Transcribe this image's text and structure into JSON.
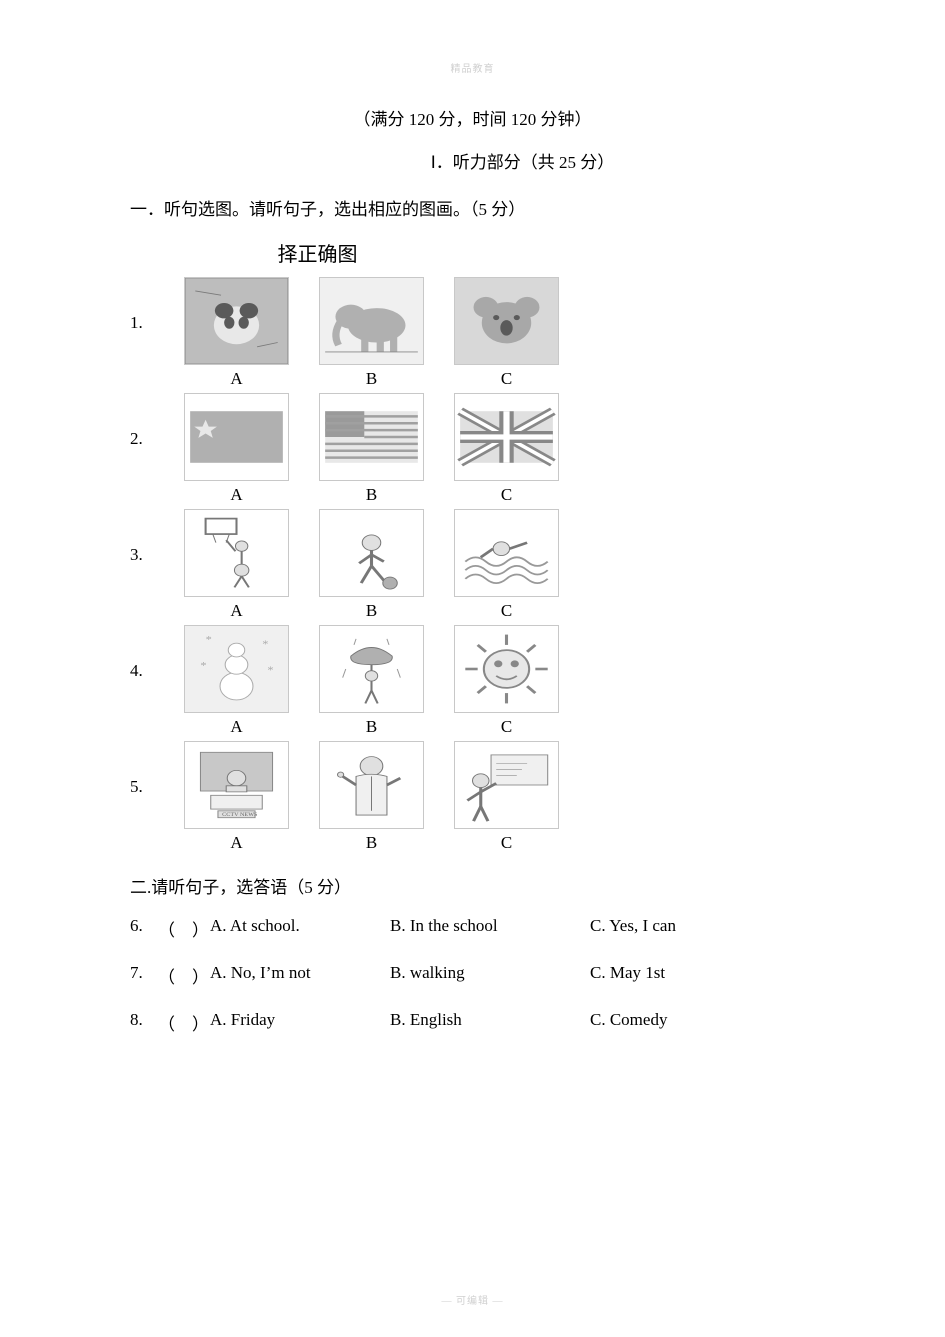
{
  "header_watermark": "精品教育",
  "info_line": "（满分 120 分，时间 120 分钟）",
  "section1_title": "Ⅰ．听力部分（共 25 分）",
  "instruction1": "一．听句选图。请听句子，选出相应的图画。（5 分）",
  "sub_title": "择正确图",
  "rows": [
    {
      "num": "1.",
      "a": "A",
      "b": "B",
      "c": "C",
      "imgs": [
        "panda",
        "elephant",
        "koala"
      ]
    },
    {
      "num": "2.",
      "a": "A",
      "b": "B",
      "c": "C",
      "imgs": [
        "china-flag",
        "usa-flag",
        "uk-flag"
      ]
    },
    {
      "num": "3.",
      "a": "A",
      "b": "B",
      "c": "C",
      "imgs": [
        "basketball",
        "soccer",
        "swim"
      ]
    },
    {
      "num": "4.",
      "a": "A",
      "b": "B",
      "c": "C",
      "imgs": [
        "snow",
        "rain",
        "sun"
      ]
    },
    {
      "num": "5.",
      "a": "A",
      "b": "B",
      "c": "C",
      "imgs": [
        "news-anchor",
        "doctor",
        "teacher"
      ]
    }
  ],
  "instruction2": "二.请听句子，选答语（5 分）",
  "text_questions": [
    {
      "num": "6.",
      "paren": "（　）",
      "a": "A. At school.",
      "b": "B. In the school",
      "c": "C. Yes, I can"
    },
    {
      "num": "7.",
      "paren": "（　）",
      "a": "A. No, I’m not",
      "b": "B. walking",
      "c": "C. May 1st"
    },
    {
      "num": "8.",
      "paren": "（　）",
      "a": "A. Friday",
      "b": "B. English",
      "c": "C. Comedy"
    }
  ],
  "footer_watermark": "— 可编辑 —",
  "svg_defs": {
    "panda": "<rect width='100' height='100' fill='#bdbdbd'/><circle cx='50' cy='55' r='22' fill='#e8e8e8'/><circle cx='38' cy='38' r='9' fill='#5a5a5a'/><circle cx='62' cy='38' r='9' fill='#5a5a5a'/><ellipse cx='43' cy='52' rx='5' ry='7' fill='#5a5a5a'/><ellipse cx='57' cy='52' rx='5' ry='7' fill='#5a5a5a'/><rect x='0' y='0' width='100' height='100' fill='none' stroke='#8a8a8a' stroke-width='1'/><line x1='10' y1='15' x2='35' y2='20' stroke='#7a7a7a'/><line x1='70' y1='80' x2='90' y2='75' stroke='#7a7a7a'/>",
    "elephant": "<rect width='100' height='100' fill='#f0f0f0'/><ellipse cx='55' cy='55' rx='28' ry='20' fill='#b0b0b0'/><ellipse cx='30' cy='45' rx='15' ry='14' fill='#b0b0b0'/><path d='M20 50 Q12 65 18 78' stroke='#b0b0b0' stroke-width='7' fill='none'/><rect x='40' y='68' width='7' height='18' fill='#b0b0b0'/><rect x='55' y='68' width='7' height='18' fill='#b0b0b0'/><rect x='68' y='68' width='7' height='18' fill='#b0b0b0'/><line x1='5' y1='86' x2='95' y2='86' stroke='#888'/>",
    "koala": "<rect width='100' height='100' fill='#d8d8d8'/><circle cx='50' cy='52' r='24' fill='#a8a8a8'/><circle cx='30' cy='34' r='12' fill='#a8a8a8'/><circle cx='70' cy='34' r='12' fill='#a8a8a8'/><ellipse cx='50' cy='58' rx='6' ry='9' fill='#5a5a5a'/><circle cx='40' cy='46' r='3' fill='#5a5a5a'/><circle cx='60' cy='46' r='3' fill='#5a5a5a'/>",
    "china-flag": "<rect width='100' height='100' fill='#fff'/><rect x='5' y='20' width='90' height='60' fill='#b0b0b0'/><polygon points='20,30 23,38 31,38 25,43 27,51 20,46 13,51 15,43 9,38 17,38' fill='#e8e8e8'/>",
    "usa-flag": "<rect width='100' height='100' fill='#fff'/><rect x='5' y='20' width='90' height='60' fill='#e8e8e8'/><rect x='5' y='20' width='38' height='30' fill='#9a9a9a'/><line x1='5' y1='26' x2='95' y2='26' stroke='#a0a0a0' stroke-width='3'/><line x1='5' y1='34' x2='95' y2='34' stroke='#a0a0a0' stroke-width='3'/><line x1='5' y1='42' x2='95' y2='42' stroke='#a0a0a0' stroke-width='3'/><line x1='43' y1='50' x2='95' y2='50' stroke='#a0a0a0' stroke-width='3'/><line x1='5' y1='58' x2='95' y2='58' stroke='#a0a0a0' stroke-width='3'/><line x1='5' y1='66' x2='95' y2='66' stroke='#a0a0a0' stroke-width='3'/><line x1='5' y1='74' x2='95' y2='74' stroke='#a0a0a0' stroke-width='3'/>",
    "uk-flag": "<rect width='100' height='100' fill='#fff'/><rect x='5' y='20' width='90' height='60' fill='#e0e0e0'/><line x1='5' y1='20' x2='95' y2='80' stroke='#888' stroke-width='10'/><line x1='95' y1='20' x2='5' y2='80' stroke='#888' stroke-width='10'/><line x1='5' y1='20' x2='95' y2='80' stroke='#fff' stroke-width='4'/><line x1='95' y1='20' x2='5' y2='80' stroke='#fff' stroke-width='4'/><line x1='50' y1='20' x2='50' y2='80' stroke='#888' stroke-width='14'/><line x1='5' y1='50' x2='95' y2='50' stroke='#888' stroke-width='14'/><line x1='50' y1='20' x2='50' y2='80' stroke='#fff' stroke-width='6'/><line x1='5' y1='50' x2='95' y2='50' stroke='#fff' stroke-width='6'/>",
    "basketball": "<rect width='100' height='100' fill='#fff'/><rect x='20' y='10' width='30' height='18' fill='none' stroke='#777' stroke-width='2'/><line x1='25' y1='28' x2='45' y2='28' stroke='#777'/><line x1='27' y1='28' x2='30' y2='38' stroke='#777'/><line x1='43' y1='28' x2='40' y2='38' stroke='#777'/><circle cx='55' cy='70' r='7' fill='#e0e0e0' stroke='#777'/><line cx='55' cy='70' x1='55' y1='63' x2='55' y2='45' stroke='#777' stroke-width='2'/><circle cx='55' cy='42' r='6' fill='#e0e0e0' stroke='#777'/><line x1='49' y1='48' x2='40' y2='35' stroke='#777' stroke-width='2'/><line x1='55' y1='77' x2='48' y2='90' stroke='#777' stroke-width='2'/><line x1='55' y1='77' x2='62' y2='90' stroke='#777' stroke-width='2'/>",
    "soccer": "<rect width='100' height='100' fill='#fff'/><circle cx='50' cy='38' r='9' fill='#e0e0e0' stroke='#777'/><line x1='50' y1='47' x2='50' y2='65' stroke='#777' stroke-width='3'/><line x1='50' y1='52' x2='38' y2='62' stroke='#777' stroke-width='3'/><line x1='50' y1='52' x2='62' y2='60' stroke='#777' stroke-width='3'/><line x1='50' y1='65' x2='40' y2='85' stroke='#777' stroke-width='3'/><line x1='50' y1='65' x2='62' y2='82' stroke='#777' stroke-width='3'/><circle cx='68' cy='85' r='7' fill='#b0b0b0' stroke='#777'/>",
    "swim": "<rect width='100' height='100' fill='#fff'/><path d='M10 60 Q20 50 30 60 T50 60 T70 60 T90 60' stroke='#999' fill='none' stroke-width='2'/><path d='M10 70 Q20 60 30 70 T50 70 T70 70 T90 70' stroke='#999' fill='none' stroke-width='2'/><path d='M10 80 Q20 70 30 80 T50 80 T70 80 T90 80' stroke='#999' fill='none' stroke-width='2'/><circle cx='45' cy='45' r='8' fill='#e0e0e0' stroke='#777'/><line x1='53' y1='45' x2='70' y2='38' stroke='#777' stroke-width='3'/><line x1='37' y1='45' x2='25' y2='55' stroke='#777' stroke-width='3'/>",
    "snow": "<rect width='100' height='100' fill='#f0f0f0'/><circle cx='50' cy='70' r='16' fill='#fff' stroke='#aaa'/><circle cx='50' cy='45' r='11' fill='#fff' stroke='#aaa'/><circle cx='50' cy='28' r='8' fill='#fff' stroke='#aaa'/><text x='20' y='20' font-size='12' fill='#aaa'>*</text><text x='75' y='25' font-size='12' fill='#aaa'>*</text><text x='15' y='50' font-size='12' fill='#aaa'>*</text><text x='80' y='55' font-size='12' fill='#aaa'>*</text>",
    "rain": "<rect width='100' height='100' fill='#fff'/><path d='M30 35 Q50 15 70 35 Q72 45 50 45 Q28 45 30 35 Z' fill='#b0b0b0' stroke='#777'/><line x1='50' y1='45' x2='50' y2='75' stroke='#777' stroke-width='2'/><circle cx='50' cy='58' r='6' fill='#e0e0e0' stroke='#777'/><line x1='50' y1='75' x2='44' y2='90' stroke='#777' stroke-width='2'/><line x1='50' y1='75' x2='56' y2='90' stroke='#777' stroke-width='2'/><line x1='25' y1='50' x2='22' y2='60' stroke='#999'/><line x1='75' y1='50' x2='78' y2='60' stroke='#999'/><line x1='35' y1='15' x2='33' y2='22' stroke='#999'/><line x1='65' y1='15' x2='67' y2='22' stroke='#999'/>",
    "sun": "<rect width='100' height='100' fill='#fff'/><circle cx='50' cy='50' r='22' fill='#e8e8e8' stroke='#888' stroke-width='2'/><circle cx='42' cy='44' r='4' fill='#888'/><circle cx='58' cy='44' r='4' fill='#888'/><path d='M40 58 Q50 66 60 58' stroke='#888' stroke-width='2' fill='none'/><line x1='50' y1='10' x2='50' y2='22' stroke='#888' stroke-width='3'/><line x1='50' y1='78' x2='50' y2='90' stroke='#888' stroke-width='3'/><line x1='10' y1='50' x2='22' y2='50' stroke='#888' stroke-width='3'/><line x1='78' y1='50' x2='90' y2='50' stroke='#888' stroke-width='3'/><line x1='22' y1='22' x2='30' y2='30' stroke='#888' stroke-width='3'/><line x1='70' y1='70' x2='78' y2='78' stroke='#888' stroke-width='3'/><line x1='78' y1='22' x2='70' y2='30' stroke='#888' stroke-width='3'/><line x1='30' y1='70' x2='22' y2='78' stroke='#888' stroke-width='3'/>",
    "news-anchor": "<rect width='100' height='100' fill='#fff'/><rect x='15' y='12' width='70' height='45' fill='#c8c8c8' stroke='#888'/><circle cx='50' cy='42' r='9' fill='#e0e0e0' stroke='#777'/><path d='M40 51 L40 58 L60 58 L60 51 Z' fill='#e0e0e0' stroke='#777'/><rect x='25' y='62' width='50' height='16' fill='#f0f0f0' stroke='#888'/><rect x='32' y='80' width='36' height='8' fill='#e0e0e0' stroke='#888'/><text x='36' y='86' font-size='6' fill='#666'>CCTV NEWS</text>",
    "doctor": "<rect width='100' height='100' fill='#fff'/><circle cx='50' cy='28' r='11' fill='#e0e0e0' stroke='#777'/><path d='M35 40 L35 85 L65 85 L65 40 Q50 35 35 40 Z' fill='#f0f0f0' stroke='#777'/><line x1='50' y1='40' x2='50' y2='80' stroke='#777'/><line x1='35' y1='50' x2='22' y2='40' stroke='#777' stroke-width='3'/><line x1='65' y1='50' x2='78' y2='42' stroke='#777' stroke-width='3'/><circle cx='20' cy='38' r='3' fill='#e0e0e0' stroke='#777'/>",
    "teacher": "<rect width='100' height='100' fill='#fff'/><rect x='35' y='15' width='55' height='35' fill='#f0f0f0' stroke='#888'/><line x1='40' y1='25' x2='70' y2='25' stroke='#aaa'/><line x1='40' y1='32' x2='65' y2='32' stroke='#aaa'/><line x1='40' y1='39' x2='60' y2='39' stroke='#aaa'/><circle cx='25' cy='45' r='8' fill='#e0e0e0' stroke='#777'/><line x1='25' y1='53' x2='25' y2='75' stroke='#777' stroke-width='3'/><line x1='25' y1='58' x2='40' y2='48' stroke='#777' stroke-width='3'/><line x1='25' y1='58' x2='12' y2='68' stroke='#777' stroke-width='3'/><line x1='25' y1='75' x2='18' y2='92' stroke='#777' stroke-width='3'/><line x1='25' y1='75' x2='32' y2='92' stroke='#777' stroke-width='3'/>"
  }
}
